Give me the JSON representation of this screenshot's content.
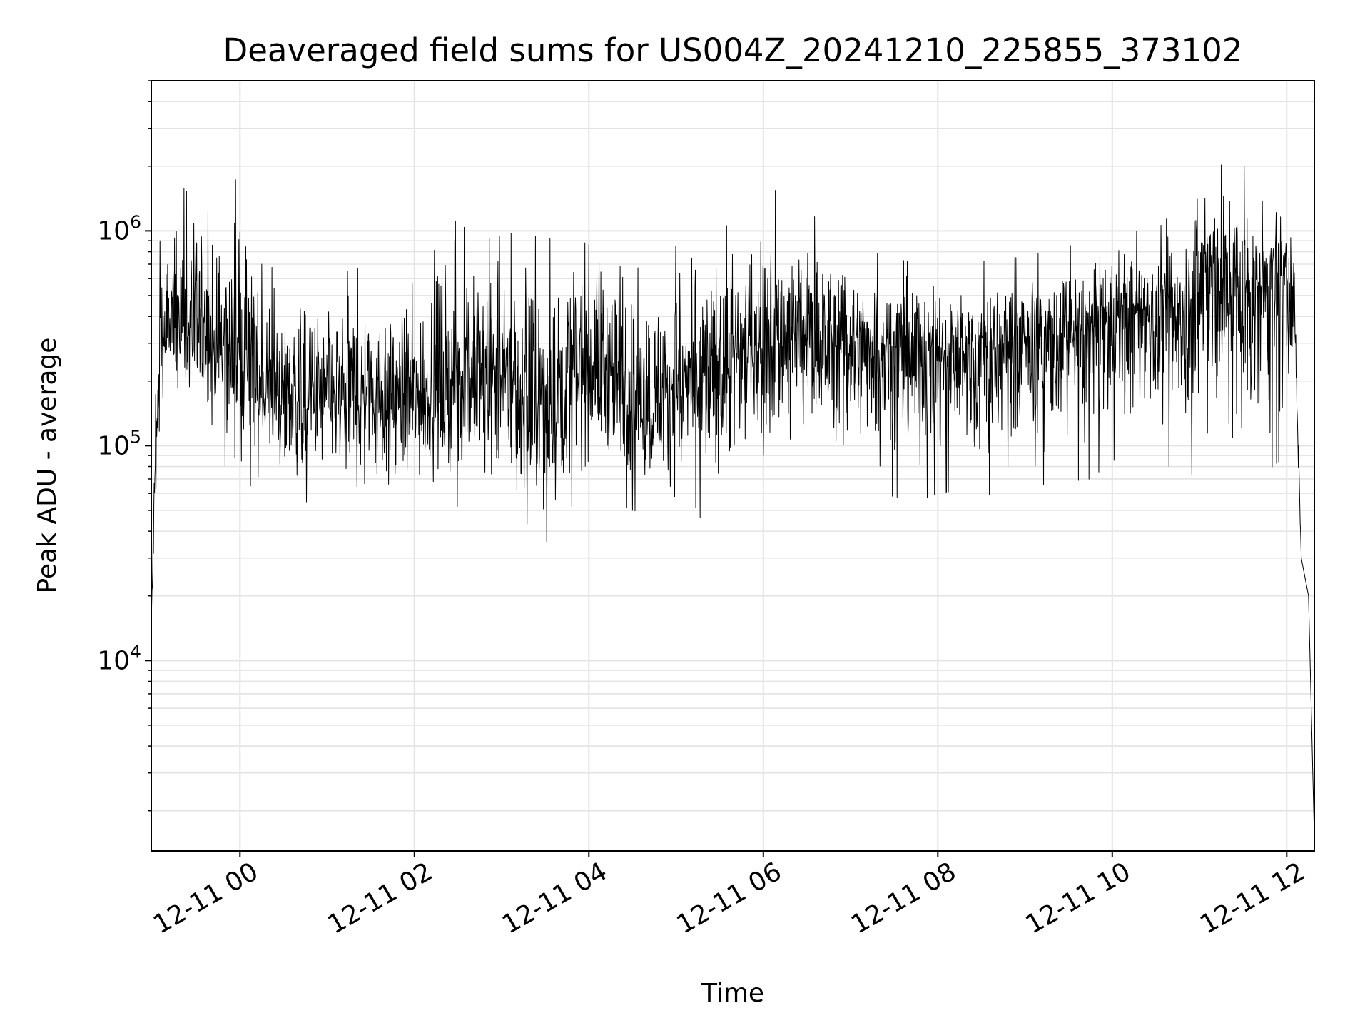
{
  "chart_data": {
    "type": "line",
    "title": "Deaveraged field sums for US004Z_20241210_225855_373102",
    "xlabel": "Time",
    "ylabel": "Peak ADU - average",
    "yscale": "log",
    "ylim": [
      1300,
      5000000
    ],
    "xlim": [
      "2024-12-10 22:59",
      "2024-12-11 12:19"
    ],
    "grid": true,
    "line_color": "#000000",
    "x_ticks": [
      {
        "value": "2024-12-11 00:00",
        "label": "12-11 00"
      },
      {
        "value": "2024-12-11 02:00",
        "label": "12-11 02"
      },
      {
        "value": "2024-12-11 04:00",
        "label": "12-11 04"
      },
      {
        "value": "2024-12-11 06:00",
        "label": "12-11 06"
      },
      {
        "value": "2024-12-11 08:00",
        "label": "12-11 08"
      },
      {
        "value": "2024-12-11 10:00",
        "label": "12-11 10"
      },
      {
        "value": "2024-12-11 12:00",
        "label": "12-11 12"
      }
    ],
    "y_ticks": [
      {
        "value": 10000,
        "base": "10",
        "exp": "4"
      },
      {
        "value": 100000,
        "base": "10",
        "exp": "5"
      },
      {
        "value": 1000000,
        "base": "10",
        "exp": "6"
      }
    ],
    "series": [
      {
        "x": [
          "2024-12-10 22:59",
          "2024-12-10 23:01",
          "2024-12-10 23:05",
          "2024-12-10 23:10",
          "2024-12-10 23:20",
          "2024-12-10 23:30",
          "2024-12-10 23:40",
          "2024-12-10 23:50",
          "2024-12-11 00:00",
          "2024-12-11 00:15",
          "2024-12-11 00:30",
          "2024-12-11 00:45",
          "2024-12-11 01:00",
          "2024-12-11 01:15",
          "2024-12-11 01:30",
          "2024-12-11 01:45",
          "2024-12-11 02:00",
          "2024-12-11 02:15",
          "2024-12-11 02:30",
          "2024-12-11 02:45",
          "2024-12-11 03:00",
          "2024-12-11 03:15",
          "2024-12-11 03:30",
          "2024-12-11 03:45",
          "2024-12-11 04:00",
          "2024-12-11 04:15",
          "2024-12-11 04:30",
          "2024-12-11 04:45",
          "2024-12-11 05:00",
          "2024-12-11 05:15",
          "2024-12-11 05:30",
          "2024-12-11 05:45",
          "2024-12-11 06:00",
          "2024-12-11 06:15",
          "2024-12-11 06:30",
          "2024-12-11 06:45",
          "2024-12-11 07:00",
          "2024-12-11 07:15",
          "2024-12-11 07:30",
          "2024-12-11 07:45",
          "2024-12-11 08:00",
          "2024-12-11 08:15",
          "2024-12-11 08:30",
          "2024-12-11 08:45",
          "2024-12-11 09:00",
          "2024-12-11 09:15",
          "2024-12-11 09:30",
          "2024-12-11 09:45",
          "2024-12-11 10:00",
          "2024-12-11 10:15",
          "2024-12-11 10:30",
          "2024-12-11 10:45",
          "2024-12-11 11:00",
          "2024-12-11 11:15",
          "2024-12-11 11:30",
          "2024-12-11 11:45",
          "2024-12-11 12:00",
          "2024-12-11 12:05",
          "2024-12-11 12:10",
          "2024-12-11 12:15",
          "2024-12-11 12:19"
        ],
        "y": [
          15000,
          50000,
          300000,
          350000,
          380000,
          340000,
          300000,
          290000,
          260000,
          180000,
          170000,
          160000,
          165000,
          170000,
          175000,
          170000,
          160000,
          190000,
          200000,
          210000,
          190000,
          160000,
          130000,
          200000,
          250000,
          220000,
          170000,
          160000,
          180000,
          190000,
          220000,
          270000,
          300000,
          330000,
          320000,
          310000,
          290000,
          300000,
          290000,
          280000,
          260000,
          280000,
          270000,
          280000,
          300000,
          310000,
          320000,
          330000,
          380000,
          400000,
          380000,
          420000,
          520000,
          560000,
          500000,
          520000,
          600000,
          500000,
          30000,
          20000,
          1500
        ],
        "y_min": [
          15000,
          20000,
          150000,
          120000,
          130000,
          100000,
          90000,
          80000,
          70000,
          60000,
          50000,
          55000,
          50000,
          48000,
          45000,
          42000,
          50000,
          55000,
          52000,
          50000,
          48000,
          45000,
          35000,
          50000,
          60000,
          55000,
          50000,
          48000,
          45000,
          46000,
          50000,
          55000,
          70000,
          75000,
          72000,
          70000,
          55000,
          60000,
          58000,
          55000,
          60000,
          62000,
          60000,
          58000,
          65000,
          66000,
          68000,
          70000,
          85000,
          90000,
          80000,
          80000,
          70000,
          70000,
          72000,
          75000,
          90000,
          250000,
          30000,
          20000,
          1500
        ],
        "y_max": [
          15000,
          100000,
          900000,
          1400000,
          1600000,
          1400000,
          1200000,
          1100000,
          2100000,
          700000,
          650000,
          700000,
          600000,
          650000,
          700000,
          650000,
          750000,
          1200000,
          1100000,
          900000,
          950000,
          1000000,
          900000,
          1000000,
          1300000,
          1100000,
          800000,
          750000,
          850000,
          900000,
          1000000,
          1200000,
          1600000,
          1500000,
          1200000,
          1100000,
          900000,
          800000,
          750000,
          700000,
          750000,
          700000,
          720000,
          740000,
          760000,
          800000,
          850000,
          900000,
          1100000,
          1000000,
          1000000,
          1300000,
          3500000,
          2400000,
          2000000,
          1800000,
          1500000,
          1200000,
          30000,
          20000,
          1500
        ]
      }
    ]
  }
}
